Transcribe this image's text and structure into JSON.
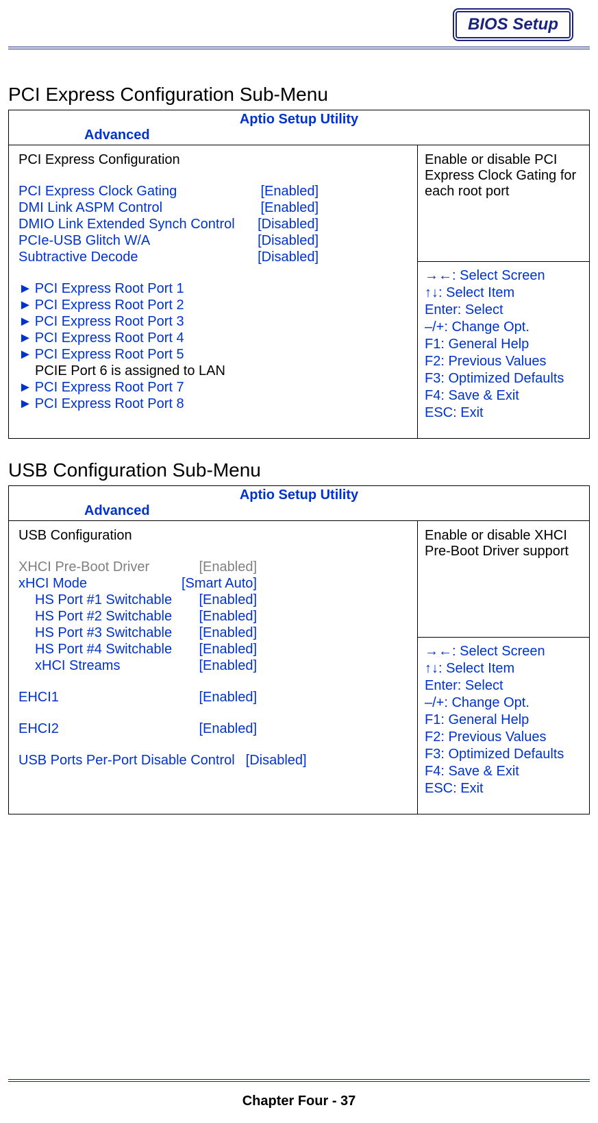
{
  "header": {
    "badge": "BIOS Setup"
  },
  "colors": {
    "accent": "#0033cc",
    "header_border": "#1a237e",
    "text": "#000000",
    "gray": "#808080"
  },
  "sections": [
    {
      "title": "PCI Express Configuration Sub-Menu",
      "utility_title": "Aptio Setup Utility",
      "tab": "Advanced",
      "config_title": "PCI Express Configuration",
      "options": [
        {
          "label": "PCI Express Clock Gating",
          "value": "[Enabled]",
          "style": "blue"
        },
        {
          "label": "DMI Link ASPM Control",
          "value": "[Enabled]",
          "style": "blue"
        },
        {
          "label": "DMIO Link Extended Synch Control",
          "value": "[Disabled]",
          "style": "blue"
        },
        {
          "label": "PCIe-USB Glitch W/A",
          "value": "[Disabled]",
          "style": "blue"
        },
        {
          "label": "Subtractive Decode",
          "value": "[Disabled]",
          "style": "blue"
        }
      ],
      "submenus": [
        {
          "label": "PCI Express Root Port 1",
          "arrow": true
        },
        {
          "label": "PCI Express Root Port 2",
          "arrow": true
        },
        {
          "label": "PCI Express Root Port 3",
          "arrow": true
        },
        {
          "label": "PCI Express Root Port 4",
          "arrow": true
        },
        {
          "label": "PCI Express Root Port 5",
          "arrow": true
        },
        {
          "label": "PCIE Port 6 is assigned to LAN",
          "arrow": false
        },
        {
          "label": "PCI Express Root Port 7",
          "arrow": true
        },
        {
          "label": "PCI Express Root Port 8",
          "arrow": true
        }
      ],
      "description": "Enable or disable PCI Express Clock Gating for each root port",
      "help": [
        "→←: Select Screen",
        "↑↓: Select Item",
        "Enter: Select",
        "–/+: Change Opt.",
        "F1: General Help",
        "F2: Previous Values",
        "F3: Optimized Defaults",
        "F4: Save & Exit",
        "ESC: Exit"
      ]
    },
    {
      "title": "USB Configuration Sub-Menu",
      "utility_title": "Aptio Setup Utility",
      "tab": "Advanced",
      "config_title": "USB Configuration",
      "options": [
        {
          "label": "XHCI Pre-Boot Driver",
          "value": "[Enabled]",
          "style": "gray"
        },
        {
          "label": "xHCI Mode",
          "value": "[Smart Auto]",
          "style": "blue"
        },
        {
          "label": "HS Port #1 Switchable",
          "value": "[Enabled]",
          "style": "blue",
          "indent": true
        },
        {
          "label": "HS Port #2 Switchable",
          "value": "[Enabled]",
          "style": "blue",
          "indent": true
        },
        {
          "label": "HS Port #3 Switchable",
          "value": "[Enabled]",
          "style": "blue",
          "indent": true
        },
        {
          "label": "HS Port #4 Switchable",
          "value": "[Enabled]",
          "style": "blue",
          "indent": true
        },
        {
          "label": "xHCI Streams",
          "value": "[Enabled]",
          "style": "blue",
          "indent": true
        }
      ],
      "options2": [
        {
          "label": "EHCI1",
          "value": "[Enabled]",
          "style": "blue"
        }
      ],
      "options3": [
        {
          "label": "EHCI2",
          "value": "[Enabled]",
          "style": "blue"
        }
      ],
      "options4": [
        {
          "label": "USB Ports Per-Port Disable Control",
          "value": "[Disabled]",
          "style": "blue",
          "wide": true
        }
      ],
      "description": "Enable or disable XHCI Pre-Boot Driver support",
      "help": [
        "→←: Select Screen",
        "↑↓: Select Item",
        "Enter: Select",
        "–/+: Change Opt.",
        "F1: General Help",
        "F2: Previous Values",
        "F3: Optimized Defaults",
        "F4: Save & Exit",
        "ESC: Exit"
      ]
    }
  ],
  "footer": "Chapter Four - 37"
}
